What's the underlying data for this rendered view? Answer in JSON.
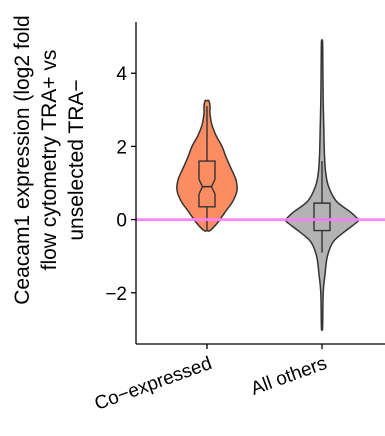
{
  "chart_data": {
    "type": "violin",
    "ylabel_lines": [
      "Ceacam1 expression (log2 fold",
      "flow cytometry TRA+ vs",
      "unselected TRA−"
    ],
    "categories": [
      "Co−expressed",
      "All others"
    ],
    "yticks": [
      -2,
      0,
      2,
      4
    ],
    "ytick_labels": [
      "−2",
      "0",
      "2",
      "4"
    ],
    "ylim": [
      -3.4,
      5.4
    ],
    "reference_line": {
      "y": 0,
      "color": "#ff80ff"
    },
    "series": [
      {
        "category": "Co−expressed",
        "fill": "#fc8d62",
        "min": -0.3,
        "max": 3.25,
        "box": {
          "q1": 0.35,
          "median": 0.9,
          "q3": 1.6,
          "notch_low": 0.7,
          "notch_high": 1.1,
          "whisker_low": -0.3,
          "whisker_high": 3.1
        },
        "density": [
          [
            -0.3,
            0.05
          ],
          [
            -0.1,
            0.17
          ],
          [
            0.2,
            0.3
          ],
          [
            0.5,
            0.43
          ],
          [
            0.8,
            0.5
          ],
          [
            1.1,
            0.48
          ],
          [
            1.4,
            0.4
          ],
          [
            1.7,
            0.32
          ],
          [
            2.0,
            0.25
          ],
          [
            2.3,
            0.15
          ],
          [
            2.6,
            0.08
          ],
          [
            2.9,
            0.05
          ],
          [
            3.1,
            0.05
          ],
          [
            3.25,
            0.03
          ]
        ]
      },
      {
        "category": "All others",
        "fill": "#b3b3b3",
        "min": -2.95,
        "max": 4.85,
        "box": {
          "q1": -0.3,
          "median": 0.0,
          "q3": 0.45,
          "notch_low": -0.03,
          "notch_high": 0.03,
          "whisker_low": -0.9,
          "whisker_high": 1.6
        },
        "density": [
          [
            -2.95,
            0.01
          ],
          [
            -2.0,
            0.02
          ],
          [
            -1.5,
            0.05
          ],
          [
            -1.0,
            0.09
          ],
          [
            -0.6,
            0.19
          ],
          [
            -0.3,
            0.4
          ],
          [
            -0.1,
            0.56
          ],
          [
            0.0,
            0.6
          ],
          [
            0.2,
            0.48
          ],
          [
            0.5,
            0.24
          ],
          [
            0.9,
            0.11
          ],
          [
            1.3,
            0.06
          ],
          [
            1.8,
            0.04
          ],
          [
            2.5,
            0.03
          ],
          [
            3.2,
            0.02
          ],
          [
            4.0,
            0.015
          ],
          [
            4.85,
            0.01
          ]
        ]
      }
    ]
  }
}
